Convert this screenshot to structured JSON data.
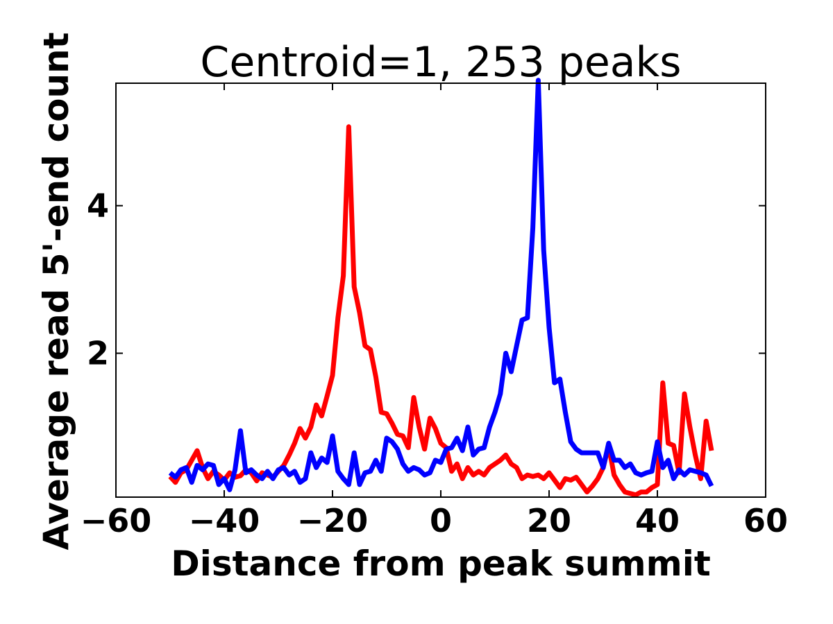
{
  "chart_data": {
    "type": "line",
    "title": "Centroid=1, 253 peaks",
    "xlabel": "Distance from peak summit",
    "ylabel": "Average read 5'-end count",
    "xlim": [
      -60,
      60
    ],
    "ylim": [
      0.05,
      5.66
    ],
    "xticks": [
      -60,
      -40,
      -20,
      0,
      20,
      40,
      60
    ],
    "xtick_labels": [
      "−60",
      "−40",
      "−20",
      "0",
      "20",
      "40",
      "60"
    ],
    "yticks": [
      2,
      4
    ],
    "ytick_labels": [
      "2",
      "4"
    ],
    "grid": false,
    "legend": "none",
    "x": [
      -50,
      -49,
      -48,
      -47,
      -46,
      -45,
      -44,
      -43,
      -42,
      -41,
      -40,
      -39,
      -38,
      -37,
      -36,
      -35,
      -34,
      -33,
      -32,
      -31,
      -30,
      -29,
      -28,
      -27,
      -26,
      -25,
      -24,
      -23,
      -22,
      -21,
      -20,
      -19,
      -18,
      -17,
      -16,
      -15,
      -14,
      -13,
      -12,
      -11,
      -10,
      -9,
      -8,
      -7,
      -6,
      -5,
      -4,
      -3,
      -2,
      -1,
      0,
      1,
      2,
      3,
      4,
      5,
      6,
      7,
      8,
      9,
      10,
      11,
      12,
      13,
      14,
      15,
      16,
      17,
      18,
      19,
      20,
      21,
      22,
      23,
      24,
      25,
      26,
      27,
      28,
      29,
      30,
      31,
      32,
      33,
      34,
      35,
      36,
      37,
      38,
      39,
      40,
      41,
      42,
      43,
      44,
      45,
      46,
      47,
      48,
      49,
      50
    ],
    "series": [
      {
        "name": "red",
        "color": "#ff0000",
        "values": [
          0.33,
          0.25,
          0.38,
          0.42,
          0.55,
          0.68,
          0.45,
          0.3,
          0.4,
          0.35,
          0.28,
          0.38,
          0.32,
          0.34,
          0.42,
          0.38,
          0.27,
          0.38,
          0.35,
          0.32,
          0.4,
          0.48,
          0.62,
          0.78,
          0.98,
          0.85,
          1.0,
          1.3,
          1.15,
          1.42,
          1.7,
          2.48,
          3.05,
          5.07,
          2.9,
          2.55,
          2.1,
          2.05,
          1.68,
          1.2,
          1.18,
          1.05,
          0.9,
          0.88,
          0.72,
          1.4,
          1.0,
          0.7,
          1.12,
          0.98,
          0.78,
          0.72,
          0.4,
          0.5,
          0.3,
          0.45,
          0.35,
          0.4,
          0.35,
          0.45,
          0.5,
          0.55,
          0.62,
          0.5,
          0.45,
          0.3,
          0.35,
          0.33,
          0.35,
          0.3,
          0.38,
          0.28,
          0.18,
          0.3,
          0.28,
          0.32,
          0.22,
          0.12,
          0.2,
          0.3,
          0.45,
          0.75,
          0.35,
          0.22,
          0.12,
          0.1,
          0.08,
          0.12,
          0.12,
          0.18,
          0.22,
          1.6,
          0.78,
          0.75,
          0.38,
          1.45,
          1.0,
          0.62,
          0.3,
          1.08,
          0.68
        ]
      },
      {
        "name": "blue",
        "color": "#0000ff",
        "values": [
          0.38,
          0.32,
          0.42,
          0.45,
          0.25,
          0.48,
          0.42,
          0.5,
          0.48,
          0.22,
          0.3,
          0.15,
          0.42,
          0.95,
          0.38,
          0.42,
          0.35,
          0.3,
          0.4,
          0.3,
          0.42,
          0.45,
          0.35,
          0.4,
          0.25,
          0.3,
          0.65,
          0.45,
          0.58,
          0.52,
          0.88,
          0.4,
          0.3,
          0.22,
          0.65,
          0.22,
          0.38,
          0.4,
          0.55,
          0.4,
          0.85,
          0.8,
          0.7,
          0.5,
          0.4,
          0.45,
          0.42,
          0.35,
          0.38,
          0.55,
          0.52,
          0.7,
          0.72,
          0.85,
          0.68,
          1.0,
          0.62,
          0.7,
          0.72,
          1.0,
          1.2,
          1.45,
          2.0,
          1.75,
          2.1,
          2.45,
          2.48,
          3.7,
          5.7,
          3.4,
          2.35,
          1.6,
          1.65,
          1.2,
          0.8,
          0.7,
          0.65,
          0.65,
          0.65,
          0.65,
          0.45,
          0.78,
          0.55,
          0.55,
          0.45,
          0.5,
          0.38,
          0.35,
          0.38,
          0.4,
          0.8,
          0.45,
          0.55,
          0.3,
          0.42,
          0.35,
          0.42,
          0.4,
          0.38,
          0.35,
          0.2
        ]
      }
    ]
  }
}
